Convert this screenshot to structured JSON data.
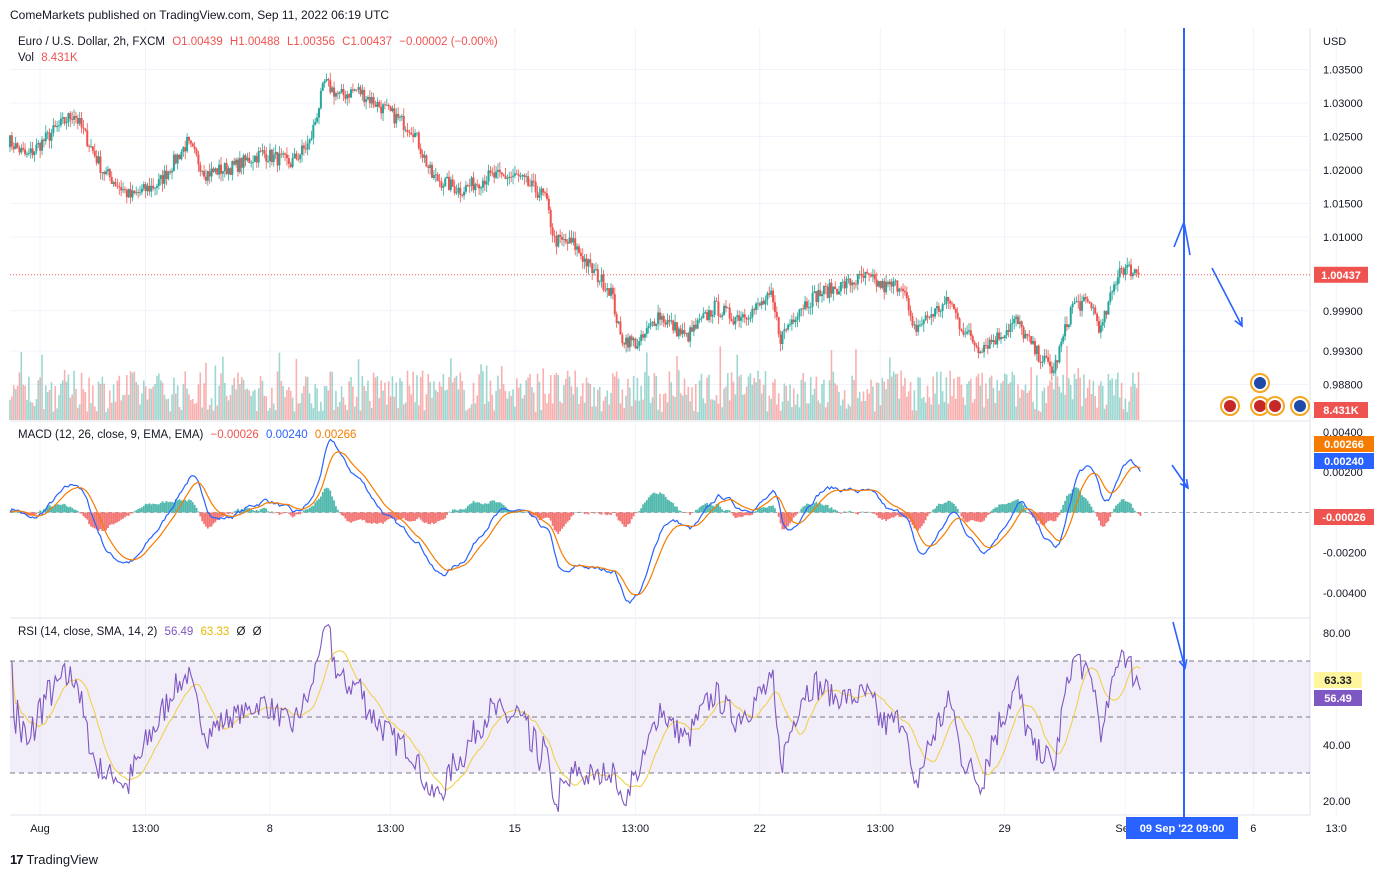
{
  "header": {
    "published": "ComeMarkets published on TradingView.com, Sep 11, 2022 06:19 UTC"
  },
  "main_legend": {
    "symbol": "Euro / U.S. Dollar, 2h, FXCM",
    "open": "O1.00439",
    "high": "H1.00488",
    "low": "L1.00356",
    "close": "C1.00437",
    "change": "−0.00002 (−0.00%)",
    "vol_label": "Vol",
    "vol_value": "8.431K"
  },
  "macd_legend": {
    "title": "MACD (12, 26, close, 9, EMA, EMA)",
    "hist": "−0.00026",
    "macd": "0.00240",
    "signal": "0.00266"
  },
  "rsi_legend": {
    "title": "RSI (14, close, SMA, 14, 2)",
    "rsi": "56.49",
    "sma": "63.33",
    "x1": "Ø",
    "x2": "Ø"
  },
  "footer": {
    "brand": "TradingView",
    "logo": "17"
  },
  "colors": {
    "up": "#26a69a",
    "down": "#ef5350",
    "macd": "#2962ff",
    "signal": "#f57c00",
    "rsi": "#7e57c2",
    "rsi_sma": "#f0d050",
    "annotation": "#2962ff"
  },
  "chart_data": [
    {
      "type": "candlestick",
      "title": "Euro / U.S. Dollar, 2h, FXCM",
      "currency": "USD",
      "y_ticks": [
        "1.03500",
        "1.03000",
        "1.02500",
        "1.02000",
        "1.01500",
        "1.01000",
        "0.99900",
        "0.99300",
        "0.98800"
      ],
      "y_tick_values": [
        1.035,
        1.03,
        1.025,
        1.02,
        1.015,
        1.01,
        0.999,
        0.993,
        0.988
      ],
      "ylim": [
        0.983,
        1.04
      ],
      "last_price": "1.00437",
      "last_price_value": 1.00437,
      "volume_label": "8.431K",
      "x_ticks": [
        "Aug",
        "13:00",
        "8",
        "13:00",
        "15",
        "13:00",
        "22",
        "13:00",
        "29",
        "Sep",
        "6",
        "13:0"
      ],
      "crosshair_date": "09 Sep '22",
      "crosshair_time": "09:00",
      "closes_anchor": [
        [
          0,
          1.0245
        ],
        [
          10,
          1.022
        ],
        [
          25,
          1.026
        ],
        [
          35,
          1.0285
        ],
        [
          50,
          1.02
        ],
        [
          65,
          1.016
        ],
        [
          80,
          1.018
        ],
        [
          95,
          1.024
        ],
        [
          105,
          1.0195
        ],
        [
          120,
          1.0205
        ],
        [
          135,
          1.0225
        ],
        [
          150,
          1.021
        ],
        [
          160,
          1.024
        ],
        [
          168,
          1.033
        ],
        [
          176,
          1.031
        ],
        [
          185,
          1.032
        ],
        [
          200,
          1.029
        ],
        [
          215,
          1.026
        ],
        [
          225,
          1.019
        ],
        [
          240,
          1.017
        ],
        [
          255,
          1.019
        ],
        [
          270,
          1.019
        ],
        [
          285,
          1.016
        ],
        [
          290,
          1.0095
        ],
        [
          300,
          1.009
        ],
        [
          310,
          1.005
        ],
        [
          320,
          1.002
        ],
        [
          325,
          0.995
        ],
        [
          335,
          0.994
        ],
        [
          345,
          0.9985
        ],
        [
          360,
          0.995
        ],
        [
          375,
          0.9995
        ],
        [
          385,
          0.998
        ],
        [
          395,
          0.999
        ],
        [
          405,
          1.001
        ],
        [
          410,
          0.995
        ],
        [
          420,
          0.9995
        ],
        [
          430,
          1.0015
        ],
        [
          440,
          1.0025
        ],
        [
          455,
          1.004
        ],
        [
          465,
          1.0025
        ],
        [
          475,
          1.003
        ],
        [
          480,
          0.996
        ],
        [
          490,
          0.9985
        ],
        [
          500,
          1.0005
        ],
        [
          505,
          0.997
        ],
        [
          515,
          0.9935
        ],
        [
          525,
          0.995
        ],
        [
          535,
          0.9975
        ],
        [
          545,
          0.993
        ],
        [
          555,
          0.99
        ],
        [
          565,
          1.0
        ],
        [
          575,
          1.0
        ],
        [
          580,
          0.996
        ],
        [
          590,
          1.0055
        ],
        [
          600,
          1.0048
        ]
      ]
    },
    {
      "type": "line",
      "title": "MACD (12, 26, close, 9, EMA, EMA)",
      "series_names": [
        "MACD",
        "Signal",
        "Histogram"
      ],
      "y_ticks": [
        "0.00400",
        "0.00200",
        "-0.00200",
        "-0.00400"
      ],
      "y_tick_values": [
        0.004,
        0.002,
        -0.002,
        -0.004
      ],
      "ylim": [
        -0.005,
        0.0043
      ],
      "last_values": {
        "macd": "0.00240",
        "signal": "0.00266",
        "histogram": "-0.00026"
      }
    },
    {
      "type": "line",
      "title": "RSI (14, close, SMA, 14, 2)",
      "series_names": [
        "RSI",
        "RSI SMA"
      ],
      "y_ticks": [
        "80.00",
        "40.00",
        "20.00"
      ],
      "y_tick_values": [
        80,
        40,
        20
      ],
      "bands": [
        70,
        50,
        30
      ],
      "ylim": [
        15,
        85
      ],
      "last_values": {
        "rsi": "56.49",
        "sma": "63.33"
      }
    }
  ]
}
